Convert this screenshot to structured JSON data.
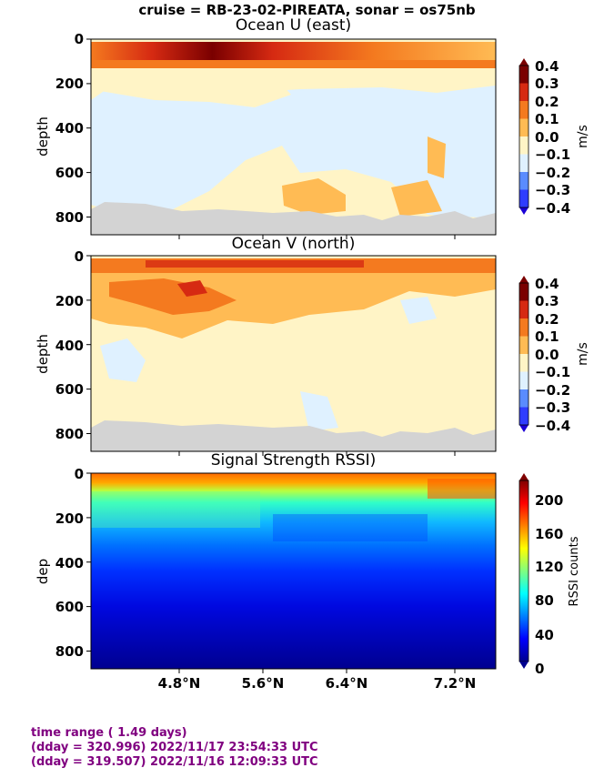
{
  "suptitle": "cruise = RB-23-02-PIREATA,  sonar = os75nb",
  "chart_data": [
    {
      "type": "heatmap",
      "title": "Ocean U (east)",
      "ylabel": "depth",
      "yticks": [
        0,
        200,
        400,
        600,
        800
      ],
      "ylim": [
        880,
        0
      ],
      "xticks": [
        "4.8°N",
        "5.6°N",
        "6.4°N",
        "7.2°N"
      ],
      "xlim_lat": [
        4.38,
        7.65
      ],
      "colorbar": {
        "label": "m/s",
        "ticks": [
          "0.4",
          "0.3",
          "0.2",
          "0.1",
          "0.0",
          "−0.1",
          "−0.2",
          "−0.3",
          "−0.4"
        ],
        "levels": [
          -0.4,
          -0.3,
          -0.2,
          -0.1,
          0.0,
          0.1,
          0.2,
          0.3,
          0.4
        ],
        "colors": [
          "#1a00d6",
          "#2f3dff",
          "#5a8cff",
          "#a6ceff",
          "#dff1ff",
          "#fff4c6",
          "#ffbb54",
          "#f47a1f",
          "#d62a12",
          "#7a0000"
        ]
      },
      "layers": [
        {
          "depth": [
            20,
            60
          ],
          "value": 0.3
        },
        {
          "depth": [
            60,
            110
          ],
          "value": 0.2
        },
        {
          "depth": [
            110,
            350
          ],
          "value": 0.05
        },
        {
          "depth": [
            350,
            700
          ],
          "value": -0.05
        },
        {
          "depth": [
            700,
            820
          ],
          "value": 0.1
        }
      ],
      "bottom_mask": "gray"
    },
    {
      "type": "heatmap",
      "title": "Ocean V (north)",
      "ylabel": "depth",
      "yticks": [
        0,
        200,
        400,
        600,
        800
      ],
      "ylim": [
        880,
        0
      ],
      "xticks": [
        "4.8°N",
        "5.6°N",
        "6.4°N",
        "7.2°N"
      ],
      "xlim_lat": [
        4.38,
        7.65
      ],
      "colorbar": {
        "label": "m/s",
        "ticks": [
          "0.4",
          "0.3",
          "0.2",
          "0.1",
          "0.0",
          "−0.1",
          "−0.2",
          "−0.3",
          "−0.4"
        ],
        "levels": [
          -0.4,
          -0.3,
          -0.2,
          -0.1,
          0.0,
          0.1,
          0.2,
          0.3,
          0.4
        ],
        "colors": [
          "#1a00d6",
          "#2f3dff",
          "#5a8cff",
          "#a6ceff",
          "#dff1ff",
          "#fff4c6",
          "#ffbb54",
          "#f47a1f",
          "#d62a12",
          "#7a0000"
        ]
      },
      "layers": [
        {
          "depth": [
            20,
            50
          ],
          "value": 0.25
        },
        {
          "depth": [
            50,
            250
          ],
          "value": 0.15
        },
        {
          "depth": [
            250,
            800
          ],
          "value": 0.05
        }
      ],
      "bottom_mask": "gray"
    },
    {
      "type": "heatmap",
      "title": "Signal Strength RSSI)",
      "ylabel": "dep",
      "yticks": [
        0,
        200,
        400,
        600,
        800
      ],
      "ylim": [
        880,
        0
      ],
      "xticks": [
        "4.8°N",
        "5.6°N",
        "6.4°N",
        "7.2°N"
      ],
      "xlim_lat": [
        4.38,
        7.65
      ],
      "colorbar": {
        "label": "RSSI counts",
        "ticks": [
          "200",
          "160",
          "120",
          "80",
          "40",
          "0"
        ],
        "range": [
          0,
          220
        ]
      },
      "layers": [
        {
          "depth": [
            20,
            60
          ],
          "value": 190
        },
        {
          "depth": [
            60,
            100
          ],
          "value": 150
        },
        {
          "depth": [
            100,
            200
          ],
          "value": 95
        },
        {
          "depth": [
            200,
            350
          ],
          "value": 70
        },
        {
          "depth": [
            350,
            500
          ],
          "value": 45
        },
        {
          "depth": [
            500,
            880
          ],
          "value": 20
        }
      ]
    }
  ],
  "footer": {
    "line1": "time range ( 1.49 days)",
    "line2": "(dday = 320.996) 2022/11/17 23:54:33 UTC",
    "line3": "(dday = 319.507) 2022/11/16 12:09:33 UTC"
  }
}
